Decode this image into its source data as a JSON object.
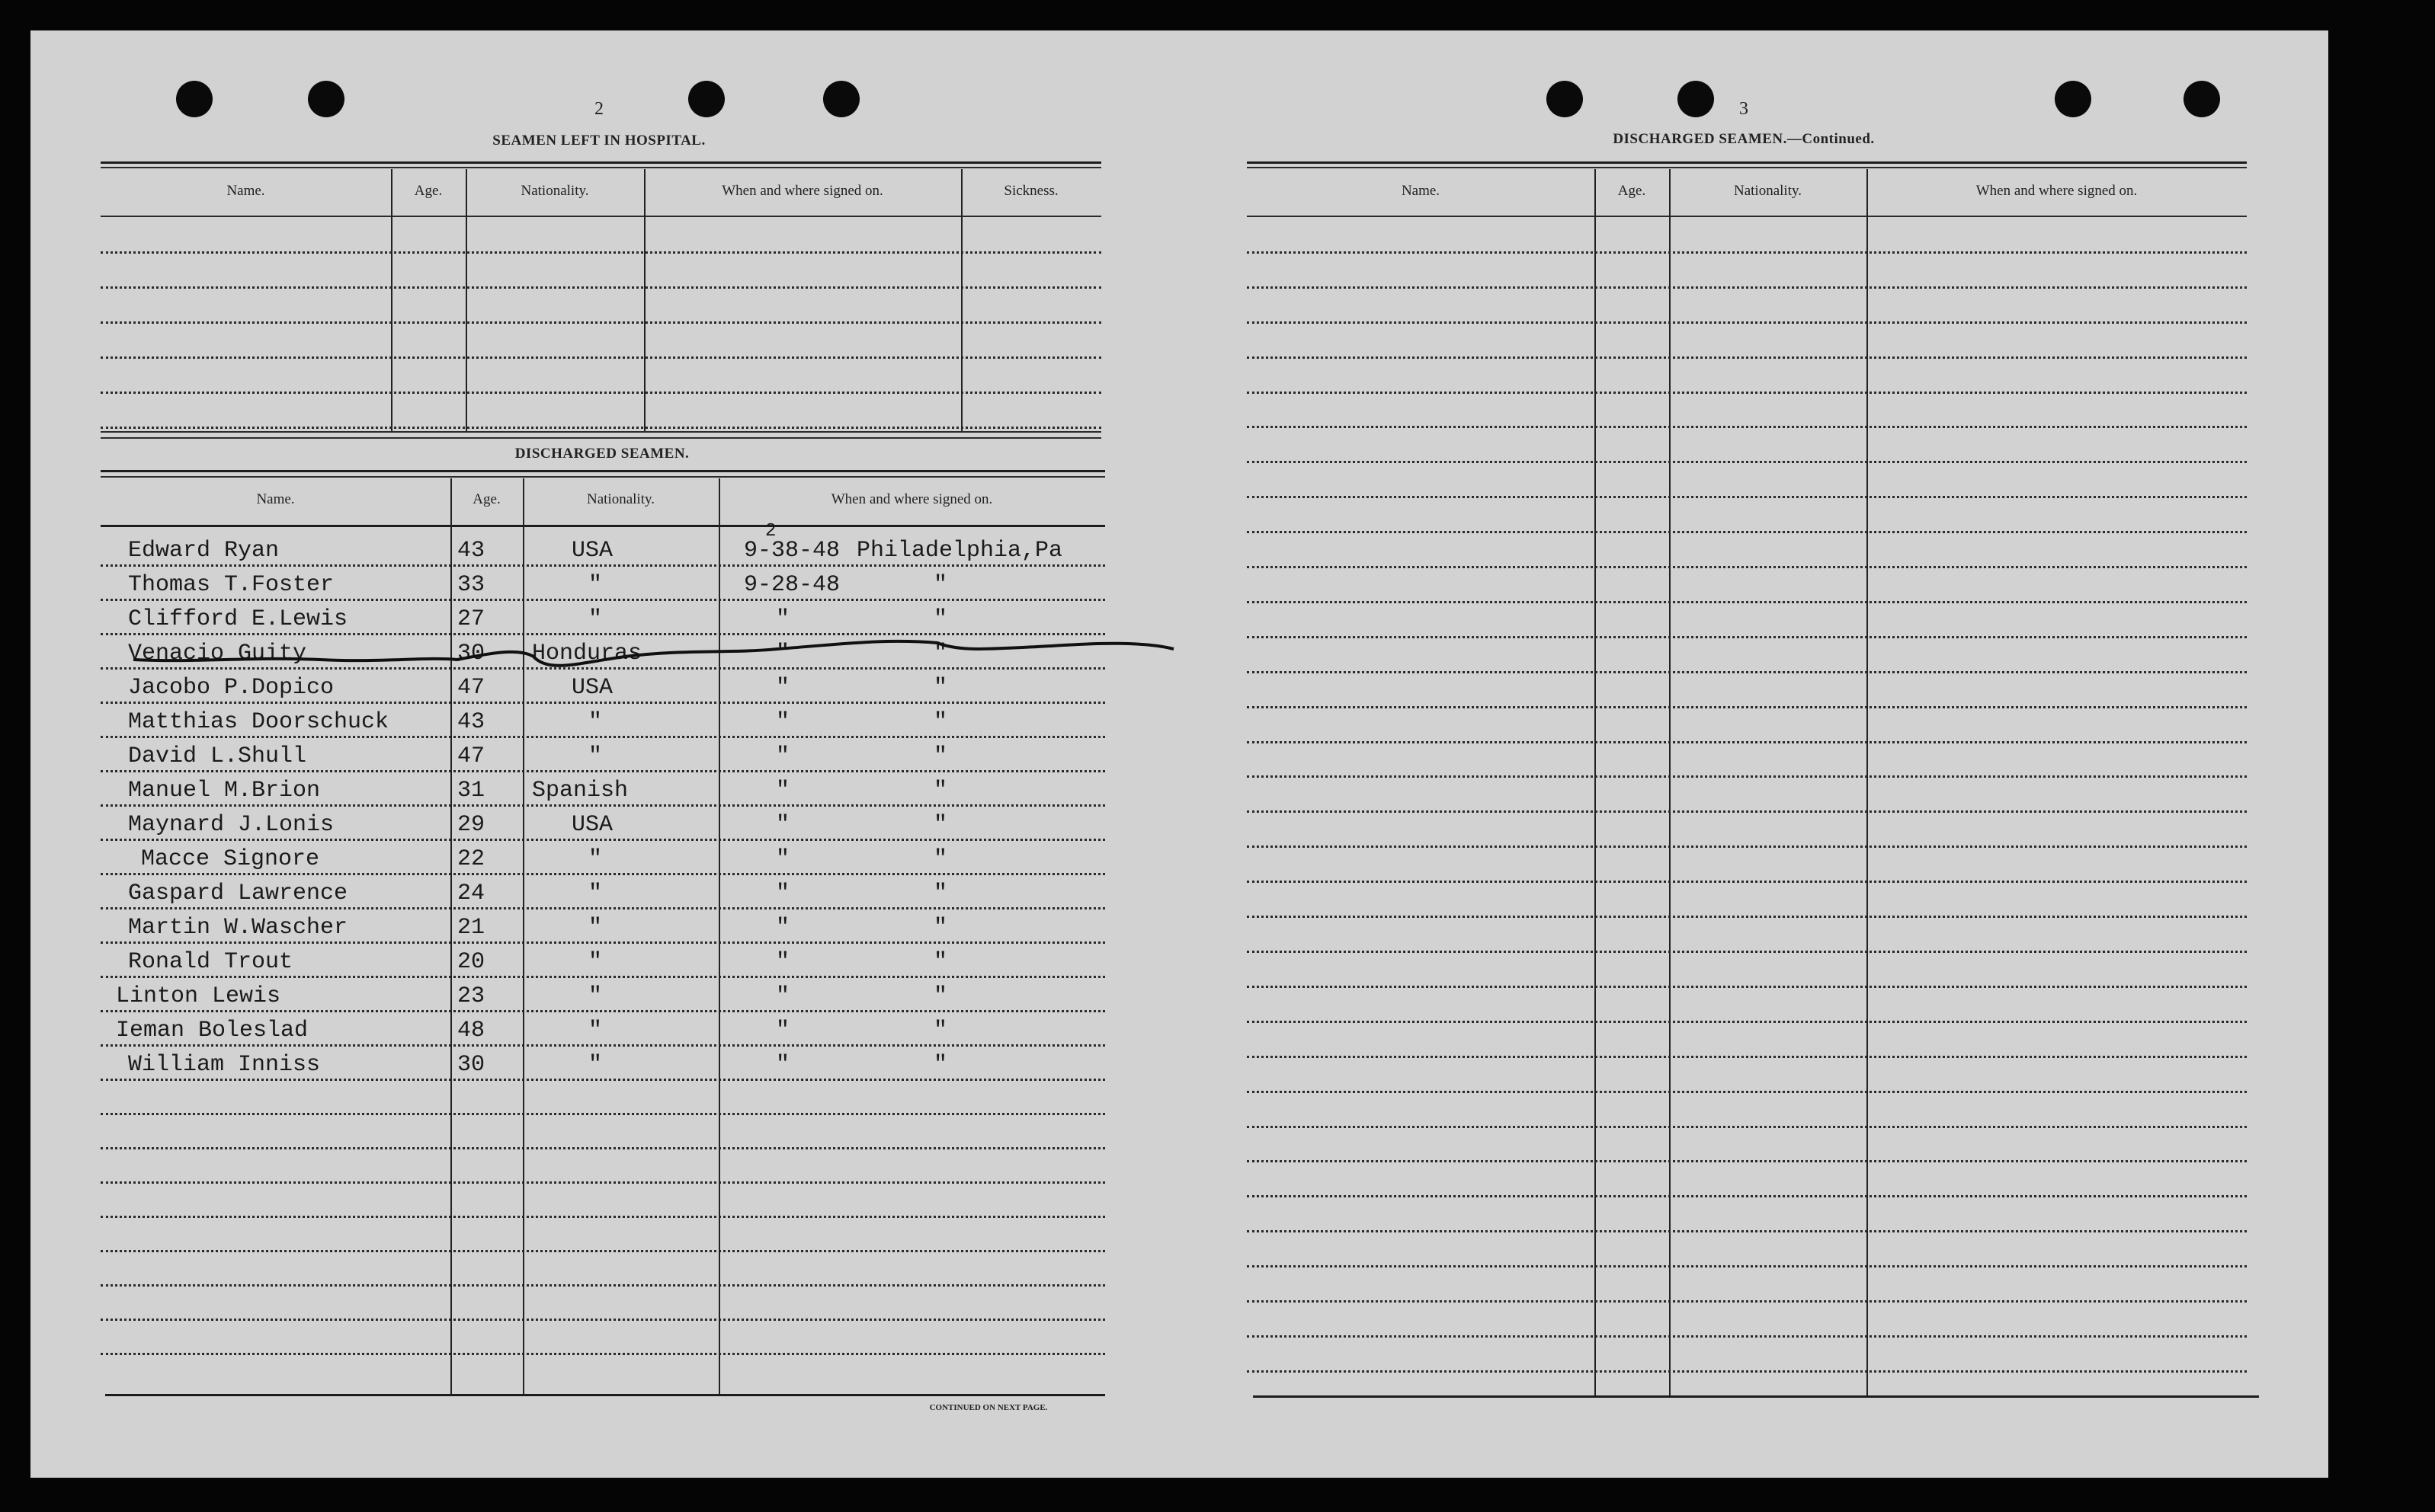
{
  "left_page": {
    "page_number": "2",
    "hospital_title": "SEAMEN LEFT IN HOSPITAL.",
    "hospital_columns": [
      "Name.",
      "Age.",
      "Nationality.",
      "When and where signed on.",
      "Sickness."
    ],
    "discharged_title": "DISCHARGED SEAMEN.",
    "discharged_columns": [
      "Name.",
      "Age.",
      "Nationality.",
      "When and where signed on."
    ],
    "rows": [
      {
        "name": "Edward Ryan",
        "age": "43",
        "nationality": "USA",
        "date": "9-38-48",
        "date_correction": "2",
        "place": "Philadelphia,Pa",
        "struck": false
      },
      {
        "name": "Thomas T.Foster",
        "age": "33",
        "nationality": "\"",
        "date": "9-28-48",
        "place": "\"",
        "struck": false
      },
      {
        "name": "Clifford E.Lewis",
        "age": "27",
        "nationality": "\"",
        "date": "\"",
        "place": "\"",
        "struck": false
      },
      {
        "name": "Venacio Guity",
        "age": "30",
        "nationality": "Honduras",
        "date": "\"",
        "place": "\"",
        "struck": true
      },
      {
        "name": "Jacobo P.Dopico",
        "age": "47",
        "nationality": "USA",
        "date": "\"",
        "place": "\"",
        "struck": false
      },
      {
        "name": "Matthias Doorschuck",
        "age": "43",
        "nationality": "\"",
        "date": "\"",
        "place": "\"",
        "struck": false
      },
      {
        "name": "David L.Shull",
        "age": "47",
        "nationality": "\"",
        "date": "\"",
        "place": "\"",
        "struck": false
      },
      {
        "name": "Manuel M.Brion",
        "age": "31",
        "nationality": "Spanish",
        "date": "\"",
        "place": "\"",
        "struck": false
      },
      {
        "name": "Maynard J.Lonis",
        "age": "29",
        "nationality": "USA",
        "date": "\"",
        "place": "\"",
        "struck": false
      },
      {
        "name": "Macce  Signore",
        "age": "22",
        "nationality": "\"",
        "date": "\"",
        "place": "\"",
        "struck": false
      },
      {
        "name": "Gaspard  Lawrence",
        "age": "24",
        "nationality": "\"",
        "date": "\"",
        "place": "\"",
        "struck": false
      },
      {
        "name": "Martin W.Wascher",
        "age": "21",
        "nationality": "\"",
        "date": "\"",
        "place": "\"",
        "struck": false
      },
      {
        "name": "Ronald Trout",
        "age": "20",
        "nationality": "\"",
        "date": "\"",
        "place": "\"",
        "struck": false
      },
      {
        "name": "Linton Lewis",
        "age": "23",
        "nationality": "\"",
        "date": "\"",
        "place": "\"",
        "struck": false
      },
      {
        "name": "Ieman Boleslad",
        "age": "48",
        "nationality": "\"",
        "date": "\"",
        "place": "\"",
        "struck": false
      },
      {
        "name": "William Inniss",
        "age": "30",
        "nationality": "\"",
        "date": "\"",
        "place": "\"",
        "struck": false
      }
    ],
    "footer": "CONTINUED ON NEXT PAGE."
  },
  "right_page": {
    "page_number": "3",
    "title": "DISCHARGED SEAMEN.—Continued.",
    "columns": [
      "Name.",
      "Age.",
      "Nationality.",
      "When and where signed on."
    ]
  }
}
